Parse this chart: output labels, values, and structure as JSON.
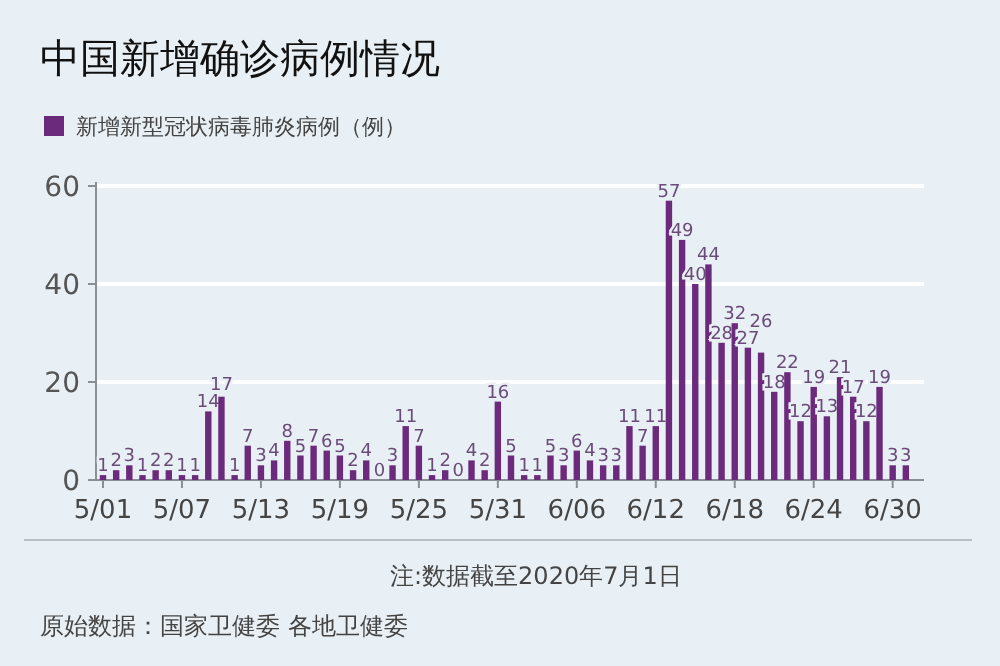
{
  "chart_data": {
    "type": "bar",
    "title": "中国新增确诊病例情况",
    "categories": [
      "5/01",
      null,
      null,
      null,
      null,
      null,
      "5/07",
      null,
      null,
      null,
      null,
      null,
      "5/13",
      null,
      null,
      null,
      null,
      null,
      "5/19",
      null,
      null,
      null,
      null,
      null,
      "5/25",
      null,
      null,
      null,
      null,
      null,
      "5/31",
      null,
      null,
      null,
      null,
      null,
      "6/06",
      null,
      null,
      null,
      null,
      null,
      "6/12",
      null,
      null,
      null,
      null,
      null,
      "6/18",
      null,
      null,
      null,
      null,
      null,
      "6/24",
      null,
      null,
      null,
      null,
      null,
      "6/30",
      null
    ],
    "series": [
      {
        "name": "新增新型冠状病毒肺炎病例（例）",
        "color": "#6b2a7b",
        "values": [
          1,
          2,
          3,
          1,
          2,
          2,
          1,
          1,
          14,
          17,
          1,
          7,
          3,
          4,
          8,
          5,
          7,
          6,
          5,
          2,
          4,
          0,
          3,
          11,
          7,
          1,
          2,
          0,
          4,
          2,
          16,
          5,
          1,
          1,
          5,
          3,
          6,
          4,
          3,
          3,
          11,
          7,
          11,
          57,
          49,
          40,
          44,
          28,
          32,
          27,
          26,
          18,
          22,
          12,
          19,
          13,
          21,
          17,
          12,
          19,
          3,
          3
        ]
      }
    ],
    "ylim": [
      0,
      60
    ],
    "yticks": [
      0,
      20,
      40,
      60
    ],
    "grid": "y",
    "legend": "top left",
    "data_labels": true,
    "annotations": [
      "注:数据截至2020年7月1日",
      "原始数据：国家卫健委 各地卫健委"
    ]
  }
}
